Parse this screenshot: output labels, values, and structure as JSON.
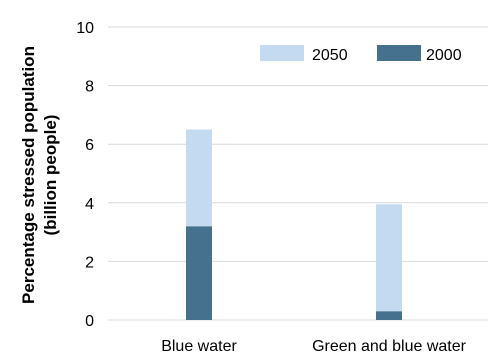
{
  "chart_data": {
    "type": "bar",
    "stacked": true,
    "categories": [
      "Blue water",
      "Green and blue water"
    ],
    "series": [
      {
        "name": "2000",
        "values": [
          3.2,
          0.3
        ],
        "color": "#45718f"
      },
      {
        "name": "2050",
        "values": [
          3.3,
          3.65
        ],
        "color": "#c3daf1"
      }
    ],
    "totals": [
      6.5,
      3.95
    ],
    "ylabel_lines": [
      "Percentage stressed population",
      "(billion people)"
    ],
    "ylim": [
      0,
      10
    ],
    "yticks": [
      "0",
      "2",
      "4",
      "6",
      "8",
      "10"
    ],
    "grid": true,
    "grid_color": "#d9d9d9",
    "legend_position": "top-right",
    "legend_order": [
      "2050",
      "2000"
    ]
  }
}
